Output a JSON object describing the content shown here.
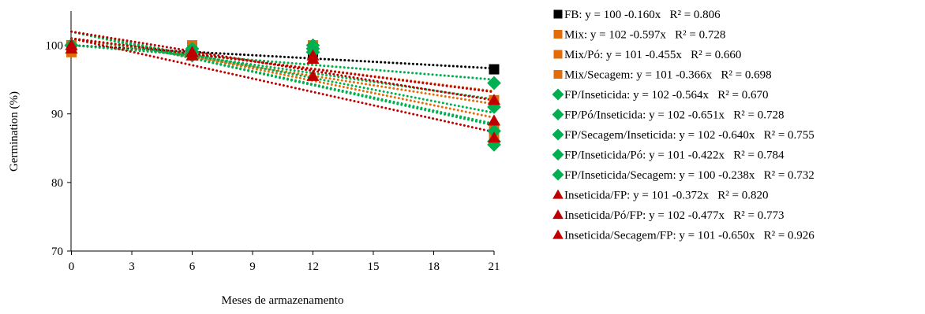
{
  "chart_data": {
    "type": "scatter",
    "title": "",
    "xlabel": "Meses de armazenamento",
    "ylabel": "Germination (%)",
    "xlim": [
      0,
      21
    ],
    "ylim": [
      70,
      105
    ],
    "xticks": [
      "0",
      "3",
      "6",
      "9",
      "12",
      "15",
      "18",
      "21"
    ],
    "yticks": [
      "70",
      "80",
      "90",
      "100"
    ],
    "x": [
      0,
      6,
      12,
      21
    ],
    "grid": false,
    "trendlines": "linear, dotted",
    "legend_position": "right",
    "series": [
      {
        "name": "FB",
        "label": "FB: y = 100 -0.160x   R² = 0.806",
        "marker": "square",
        "color": "#000000",
        "intercept": 100,
        "slope": -0.16,
        "values": [
          100,
          99.5,
          99,
          96.5
        ]
      },
      {
        "name": "Mix",
        "label": "Mix: y = 102 -0.597x   R² = 0.728",
        "marker": "square",
        "color": "#E36C0A",
        "intercept": 102,
        "slope": -0.597,
        "values": [
          99.5,
          100,
          99.5,
          87
        ]
      },
      {
        "name": "Mix/Pó",
        "label": "Mix/Pó: y = 101 -0.455x   R² = 0.660",
        "marker": "square",
        "color": "#E36C0A",
        "intercept": 101,
        "slope": -0.455,
        "values": [
          99,
          99.5,
          100,
          88
        ]
      },
      {
        "name": "Mix/Secagem",
        "label": "Mix/Secagem: y = 101 -0.366x   R² = 0.698",
        "marker": "square",
        "color": "#E36C0A",
        "intercept": 101,
        "slope": -0.366,
        "values": [
          100,
          99.5,
          99.5,
          92
        ]
      },
      {
        "name": "FP/Inseticida",
        "label": "FP/Inseticida: y = 102 -0.564x   R² = 0.670",
        "marker": "diamond",
        "color": "#00B050",
        "intercept": 102,
        "slope": -0.564,
        "values": [
          100,
          99,
          100,
          87.5
        ]
      },
      {
        "name": "FP/Pó/Inseticida",
        "label": "FP/Pó/Inseticida: y = 102 -0.651x   R² = 0.728",
        "marker": "diamond",
        "color": "#00B050",
        "intercept": 102,
        "slope": -0.651,
        "values": [
          100,
          99,
          99.5,
          85.5
        ]
      },
      {
        "name": "FP/Secagem/Inseticida",
        "label": "FP/Secagem/Inseticida: y = 102 -0.640x   R² = 0.755",
        "marker": "diamond",
        "color": "#00B050",
        "intercept": 102,
        "slope": -0.64,
        "values": [
          100,
          98.5,
          99.5,
          86
        ]
      },
      {
        "name": "FP/Inseticida/Pó",
        "label": "FP/Inseticida/Pó: y = 101 -0.422x   R² = 0.784",
        "marker": "diamond",
        "color": "#00B050",
        "intercept": 101,
        "slope": -0.422,
        "values": [
          100,
          99,
          99,
          91
        ]
      },
      {
        "name": "FP/Inseticida/Secagem",
        "label": "FP/Inseticida/Secagem: y = 100 -0.238x   R² = 0.732",
        "marker": "diamond",
        "color": "#00B050",
        "intercept": 100,
        "slope": -0.238,
        "values": [
          100,
          99.5,
          99,
          94.5
        ]
      },
      {
        "name": "Inseticida/FP",
        "label": "Inseticida/FP: y = 101 -0.372x   R² = 0.820",
        "marker": "triangle",
        "color": "#C00000",
        "intercept": 101,
        "slope": -0.372,
        "values": [
          100,
          99,
          98,
          92
        ]
      },
      {
        "name": "Inseticida/Pó/FP",
        "label": "Inseticida/Pó/FP: y = 102 -0.477x   R² = 0.773",
        "marker": "triangle",
        "color": "#C00000",
        "intercept": 102,
        "slope": -0.477,
        "values": [
          99.5,
          99,
          98.5,
          89
        ]
      },
      {
        "name": "Inseticida/Secagem/FP",
        "label": "Inseticida/Secagem/FP: y = 101 -0.650x   R² = 0.926",
        "marker": "triangle",
        "color": "#C00000",
        "intercept": 101,
        "slope": -0.65,
        "values": [
          100,
          98.5,
          95.5,
          86.5
        ]
      }
    ]
  }
}
